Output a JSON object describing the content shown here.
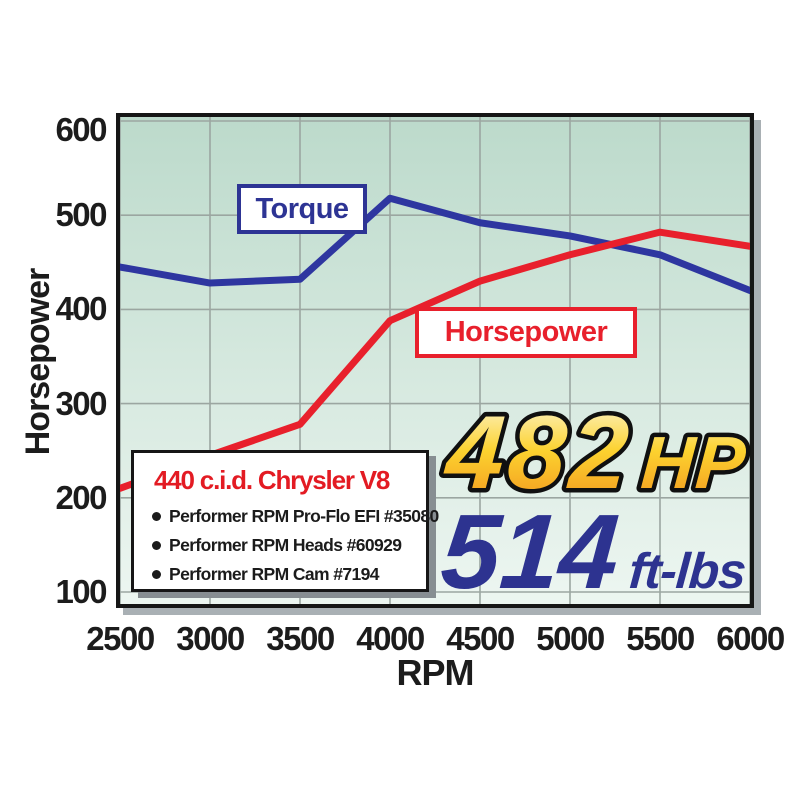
{
  "chart_data": {
    "type": "line",
    "title": "",
    "xlabel": "RPM",
    "ylabel": "Horsepower",
    "x": [
      2500,
      3000,
      3500,
      4000,
      4500,
      5000,
      5500,
      6000
    ],
    "series": [
      {
        "name": "Torque",
        "color": "#2e36a0",
        "values": [
          445,
          428,
          432,
          518,
          492,
          478,
          458,
          420
        ]
      },
      {
        "name": "Horsepower",
        "color": "#e8202c",
        "values": [
          210,
          245,
          278,
          388,
          430,
          458,
          482,
          467
        ]
      }
    ],
    "xlim": [
      2500,
      6000
    ],
    "ylim": [
      100,
      600
    ],
    "xticks": [
      2500,
      3000,
      3500,
      4000,
      4500,
      5000,
      5500,
      6000
    ],
    "yticks": [
      600,
      500,
      400,
      300,
      200,
      100
    ],
    "grid": true,
    "legend_position": "on-line boxes",
    "plot_bg_top": "#bcdacb",
    "plot_bg_bottom": "#edf6f1",
    "gridline_color": "#9ba6a1"
  },
  "series_tags": {
    "torque": "Torque",
    "horsepower": "Horsepower"
  },
  "info_box": {
    "title": "440 c.i.d. Chrysler V8",
    "items": [
      "Performer RPM Pro-Flo EFI #35080",
      "Performer RPM Heads #60929",
      "Performer RPM Cam #7194"
    ]
  },
  "headline": {
    "hp_value": "482",
    "hp_unit": "HP",
    "hp_grad_top": "#fdf8da",
    "hp_grad_mid": "#fcd22f",
    "hp_grad_bottom": "#f2921d",
    "tq_value": "514",
    "tq_unit": "ft-lbs",
    "tq_color": "#2d3390"
  }
}
